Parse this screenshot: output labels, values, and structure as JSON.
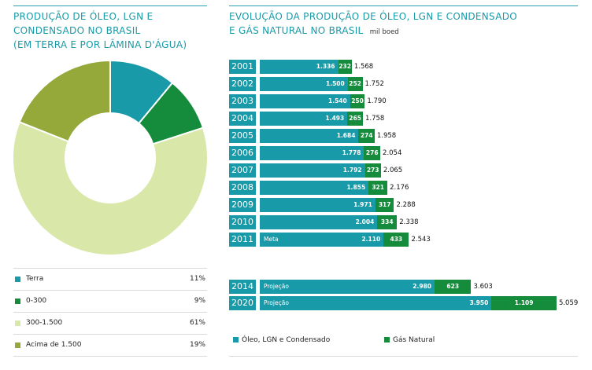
{
  "pie": {
    "title_lines": [
      "PRODUÇÃO DE ÓLEO, LGN E",
      "CONDENSADO NO BRASIL",
      "(EM TERRA E POR LÂMINA D'ÁGUA)"
    ]
  },
  "bars": {
    "title_line1": "EVOLUÇÃO DA PRODUÇÃO DE ÓLEO, LGN E CONDENSADO",
    "title_line2": "E GÁS NATURAL NO BRASIL",
    "unit": "mil boed",
    "legend": [
      {
        "label": "Óleo, LGN e Condensado",
        "color": "#189aa8"
      },
      {
        "label": "Gás Natural",
        "color": "#148c3c"
      }
    ]
  },
  "chart_data": [
    {
      "type": "pie",
      "title": "PRODUÇÃO DE ÓLEO, LGN E CONDENSADO NO BRASIL (EM TERRA E POR LÂMINA D'ÁGUA)",
      "donut": true,
      "slices": [
        {
          "label": "Terra",
          "value": 11,
          "display": "11%",
          "color": "#189aa8"
        },
        {
          "label": "0-300",
          "value": 9,
          "display": "9%",
          "color": "#148c3c"
        },
        {
          "label": "300-1.500",
          "value": 61,
          "display": "61%",
          "color": "#d9e8a8"
        },
        {
          "label": "Acima de 1.500",
          "value": 19,
          "display": "19%",
          "color": "#95a83a"
        }
      ]
    },
    {
      "type": "bar",
      "orientation": "horizontal",
      "stacked": true,
      "title": "EVOLUÇÃO DA PRODUÇÃO DE ÓLEO, LGN E CONDENSADO E GÁS NATURAL NO BRASIL",
      "unit": "mil boed",
      "xlim": [
        0,
        5100
      ],
      "rows": [
        {
          "year": "2001",
          "oil": 1336,
          "gas": 232,
          "total": 1568,
          "oil_label": "1.336",
          "gas_label": "232",
          "total_label": "1.568",
          "note": ""
        },
        {
          "year": "2002",
          "oil": 1500,
          "gas": 252,
          "total": 1752,
          "oil_label": "1.500",
          "gas_label": "252",
          "total_label": "1.752",
          "note": ""
        },
        {
          "year": "2003",
          "oil": 1540,
          "gas": 250,
          "total": 1790,
          "oil_label": "1.540",
          "gas_label": "250",
          "total_label": "1.790",
          "note": ""
        },
        {
          "year": "2004",
          "oil": 1493,
          "gas": 265,
          "total": 1758,
          "oil_label": "1.493",
          "gas_label": "265",
          "total_label": "1.758",
          "note": ""
        },
        {
          "year": "2005",
          "oil": 1684,
          "gas": 274,
          "total": 1958,
          "oil_label": "1.684",
          "gas_label": "274",
          "total_label": "1.958",
          "note": ""
        },
        {
          "year": "2006",
          "oil": 1778,
          "gas": 276,
          "total": 2054,
          "oil_label": "1.778",
          "gas_label": "276",
          "total_label": "2.054",
          "note": ""
        },
        {
          "year": "2007",
          "oil": 1792,
          "gas": 273,
          "total": 2065,
          "oil_label": "1.792",
          "gas_label": "273",
          "total_label": "2.065",
          "note": ""
        },
        {
          "year": "2008",
          "oil": 1855,
          "gas": 321,
          "total": 2176,
          "oil_label": "1.855",
          "gas_label": "321",
          "total_label": "2.176",
          "note": ""
        },
        {
          "year": "2009",
          "oil": 1971,
          "gas": 317,
          "total": 2288,
          "oil_label": "1.971",
          "gas_label": "317",
          "total_label": "2.288",
          "note": ""
        },
        {
          "year": "2010",
          "oil": 2004,
          "gas": 334,
          "total": 2338,
          "oil_label": "2.004",
          "gas_label": "334",
          "total_label": "2.338",
          "note": ""
        },
        {
          "year": "2011",
          "oil": 2110,
          "gas": 433,
          "total": 2543,
          "oil_label": "2.110",
          "gas_label": "433",
          "total_label": "2.543",
          "note": "Meta"
        },
        {
          "year": "2014",
          "oil": 2980,
          "gas": 623,
          "total": 3603,
          "oil_label": "2.980",
          "gas_label": "623",
          "total_label": "3.603",
          "note": "Projeção"
        },
        {
          "year": "2020",
          "oil": 3950,
          "gas": 1109,
          "total": 5059,
          "oil_label": "3.950",
          "gas_label": "1.109",
          "total_label": "5.059",
          "note": "Projeção"
        }
      ]
    }
  ]
}
